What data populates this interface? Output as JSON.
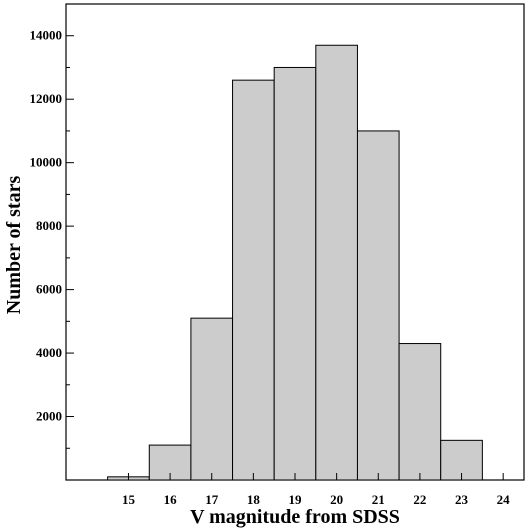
{
  "chart_data": {
    "type": "bar",
    "title": "",
    "xlabel": "V magnitude from SDSS",
    "ylabel": "Number of stars",
    "bins": [
      {
        "x0": 14.5,
        "x1": 15.5,
        "value": 100
      },
      {
        "x0": 15.5,
        "x1": 16.5,
        "value": 1100
      },
      {
        "x0": 16.5,
        "x1": 17.5,
        "value": 5100
      },
      {
        "x0": 17.5,
        "x1": 18.5,
        "value": 12600
      },
      {
        "x0": 18.5,
        "x1": 19.5,
        "value": 13000
      },
      {
        "x0": 19.5,
        "x1": 20.5,
        "value": 13700
      },
      {
        "x0": 20.5,
        "x1": 21.5,
        "value": 11000
      },
      {
        "x0": 21.5,
        "x1": 22.5,
        "value": 4300
      },
      {
        "x0": 22.5,
        "x1": 23.5,
        "value": 1250
      }
    ],
    "xlim": [
      13.5,
      24.5
    ],
    "ylim": [
      0,
      15000
    ],
    "x_ticks": [
      {
        "value": 15,
        "label": "15"
      },
      {
        "value": 16,
        "label": "16"
      },
      {
        "value": 17,
        "label": "17"
      },
      {
        "value": 18,
        "label": "18"
      },
      {
        "value": 19,
        "label": "19"
      },
      {
        "value": 20,
        "label": "20"
      },
      {
        "value": 21,
        "label": "21"
      },
      {
        "value": 22,
        "label": "22"
      },
      {
        "value": 23,
        "label": "23"
      },
      {
        "value": 24,
        "label": "24"
      }
    ],
    "y_ticks": [
      {
        "value": 2000,
        "label": "2000"
      },
      {
        "value": 4000,
        "label": "4000"
      },
      {
        "value": 6000,
        "label": "6000"
      },
      {
        "value": 8000,
        "label": "8000"
      },
      {
        "value": 10000,
        "label": "10000"
      },
      {
        "value": 12000,
        "label": "12000"
      },
      {
        "value": 14000,
        "label": "14000"
      }
    ],
    "y_minor_step": 1000,
    "grid": false,
    "legend": "none",
    "bar_color": "#cccccc",
    "bar_edge_color": "#000000"
  }
}
